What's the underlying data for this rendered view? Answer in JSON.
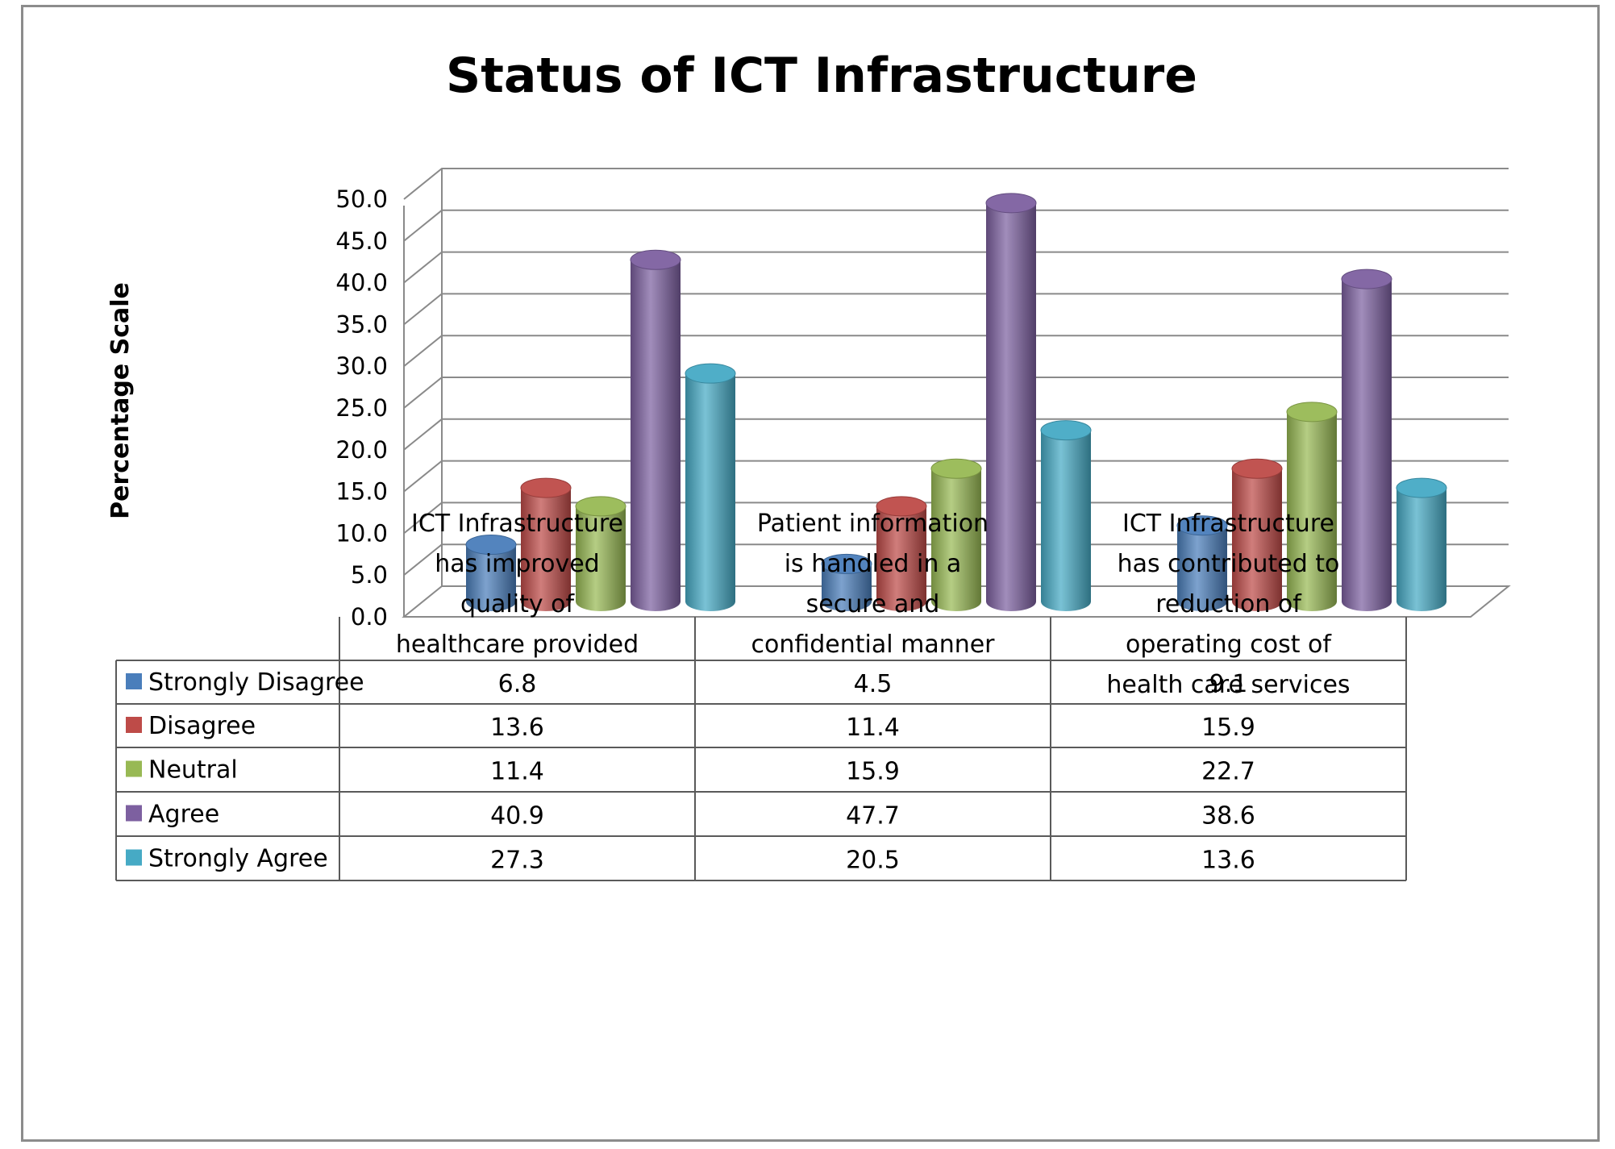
{
  "chart_data": {
    "type": "bar",
    "title": "Status of ICT Infrastructure",
    "xlabel": "",
    "ylabel": "Percentage Scale",
    "ylim": [
      0,
      50
    ],
    "yticks": [
      "0.0",
      "5.0",
      "10.0",
      "15.0",
      "20.0",
      "25.0",
      "30.0",
      "35.0",
      "40.0",
      "45.0",
      "50.0"
    ],
    "grid": true,
    "legend": "data-table",
    "categories": [
      "ICT Infrastructure has improved quality of healthcare provided",
      "Patient information is handled in a secure and confidential manner",
      "ICT Infrastructure has contributed to reduction of operating cost of health care services"
    ],
    "category_lines": [
      [
        "ICT Infrastructure",
        "has improved",
        "quality of",
        "healthcare provided"
      ],
      [
        "Patient information",
        "is handled in a",
        "secure and",
        "confidential manner"
      ],
      [
        "ICT Infrastructure",
        "has contributed to",
        "reduction of",
        "operating cost of",
        "health care services"
      ]
    ],
    "series": [
      {
        "name": "Strongly Disagree",
        "values": [
          6.8,
          4.5,
          9.1
        ],
        "labels": [
          "6.8",
          "4.5",
          "9.1"
        ],
        "color": "#4a7ebb"
      },
      {
        "name": "Disagree",
        "values": [
          13.6,
          11.4,
          15.9
        ],
        "labels": [
          "13.6",
          "11.4",
          "15.9"
        ],
        "color": "#be4b48"
      },
      {
        "name": "Neutral",
        "values": [
          11.4,
          15.9,
          22.7
        ],
        "labels": [
          "11.4",
          "15.9",
          "22.7"
        ],
        "color": "#98b954"
      },
      {
        "name": "Agree",
        "values": [
          40.9,
          47.7,
          38.6
        ],
        "labels": [
          "40.9",
          "47.7",
          "38.6"
        ],
        "color": "#7d60a0"
      },
      {
        "name": "Strongly Agree",
        "values": [
          27.3,
          20.5,
          13.6
        ],
        "labels": [
          "27.3",
          "20.5",
          "13.6"
        ],
        "color": "#46aac5"
      }
    ]
  }
}
